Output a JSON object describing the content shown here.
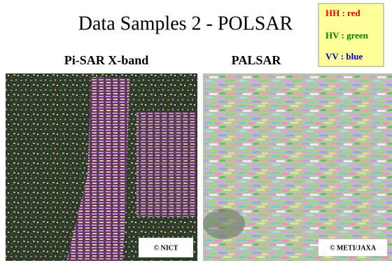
{
  "title": "Data Samples 2  - POLSAR",
  "legend": [
    "HH : red",
    "HV : green",
    "VV : blue"
  ],
  "images": [
    {
      "label": "Pi-SAR X-band",
      "credit": "© NICT"
    },
    {
      "label": "PALSAR",
      "credit": "© METI/JAXA"
    }
  ]
}
